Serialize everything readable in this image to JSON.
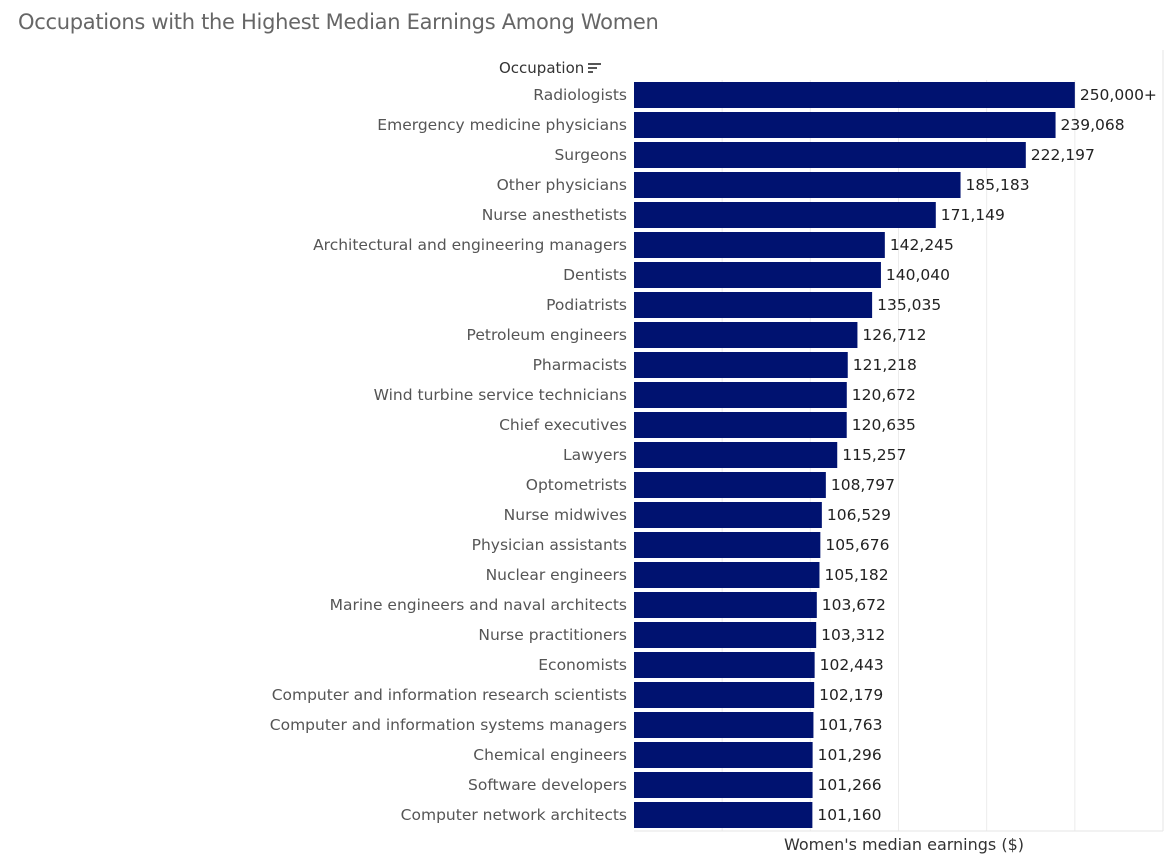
{
  "title": "Occupations with the Highest Median Earnings Among Women",
  "chart_data": {
    "type": "bar",
    "orientation": "horizontal",
    "title": "Occupations with the Highest Median Earnings Among Women",
    "ylabel": "Occupation",
    "xlabel": "Women's median earnings ($)",
    "xlim": [
      0,
      300000
    ],
    "grid": true,
    "bar_color": "#001270",
    "sort_icon": "sort-descending-icon",
    "categories": [
      "Radiologists",
      "Emergency medicine physicians",
      "Surgeons",
      "Other physicians",
      "Nurse anesthetists",
      "Architectural and engineering managers",
      "Dentists",
      "Podiatrists",
      "Petroleum engineers",
      "Pharmacists",
      "Wind turbine service technicians",
      "Chief executives",
      "Lawyers",
      "Optometrists",
      "Nurse midwives",
      "Physician assistants",
      "Nuclear engineers",
      "Marine engineers and naval architects",
      "Nurse practitioners",
      "Economists",
      "Computer and information research scientists",
      "Computer and information systems managers",
      "Chemical engineers",
      "Software developers",
      "Computer network architects"
    ],
    "values": [
      250000,
      239068,
      222197,
      185183,
      171149,
      142245,
      140040,
      135035,
      126712,
      121218,
      120672,
      120635,
      115257,
      108797,
      106529,
      105676,
      105182,
      103672,
      103312,
      102443,
      102179,
      101763,
      101296,
      101266,
      101160
    ],
    "labels": [
      "250,000+",
      "239,068",
      "222,197",
      "185,183",
      "171,149",
      "142,245",
      "140,040",
      "135,035",
      "126,712",
      "121,218",
      "120,672",
      "120,635",
      "115,257",
      "108,797",
      "106,529",
      "105,676",
      "105,182",
      "103,672",
      "103,312",
      "102,443",
      "102,179",
      "101,763",
      "101,296",
      "101,266",
      "101,160"
    ]
  }
}
